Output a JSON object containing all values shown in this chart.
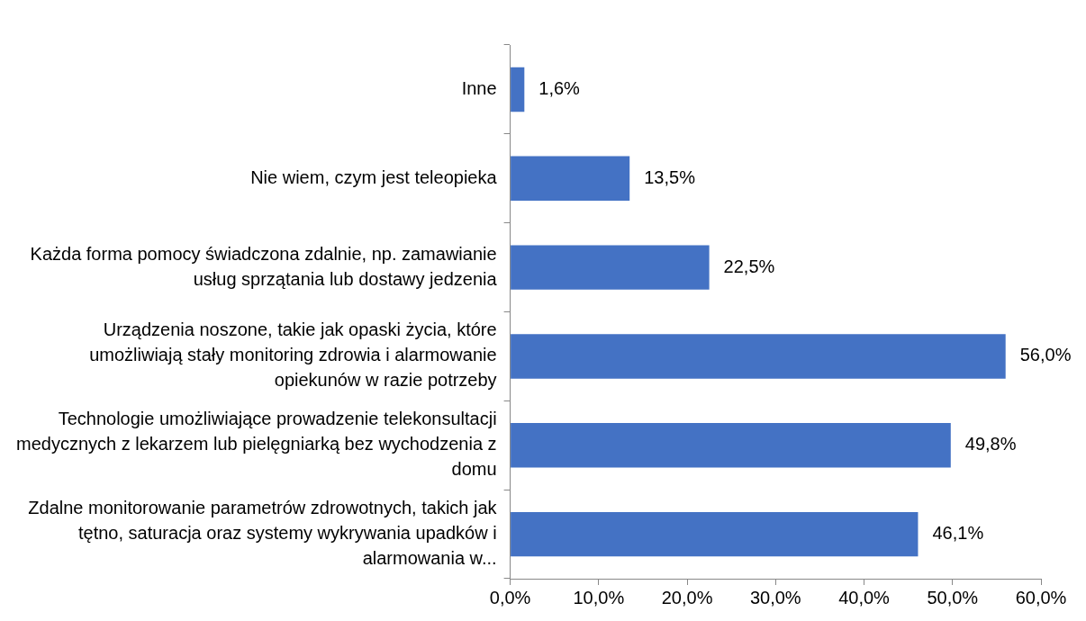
{
  "chart_data": {
    "type": "bar",
    "orientation": "horizontal",
    "categories": [
      "Inne",
      "Nie wiem, czym jest teleopieka",
      "Każda forma pomocy świadczona zdalnie, np. zamawianie usług sprzątania lub dostawy jedzenia",
      "Urządzenia noszone, takie jak opaski życia, które umożliwiają stały monitoring zdrowia i alarmowanie opiekunów w razie potrzeby",
      "Technologie umożliwiające prowadzenie telekonsultacji medycznych z lekarzem lub pielęgniarką bez wychodzenia z domu",
      "Zdalne monitorowanie parametrów zdrowotnych, takich jak tętno, saturacja oraz systemy wykrywania upadków i alarmowania w..."
    ],
    "values": [
      1.6,
      13.5,
      22.5,
      56.0,
      49.8,
      46.1
    ],
    "value_labels": [
      "1,6%",
      "13,5%",
      "22,5%",
      "56,0%",
      "49,8%",
      "46,1%"
    ],
    "color": "#4472c4",
    "xlim": [
      0,
      60
    ],
    "xticks": [
      {
        "value": 0,
        "label": "0,0%"
      },
      {
        "value": 10,
        "label": "10,0%"
      },
      {
        "value": 20,
        "label": "20,0%"
      },
      {
        "value": 30,
        "label": "30,0%"
      },
      {
        "value": 40,
        "label": "40,0%"
      },
      {
        "value": 50,
        "label": "50,0%"
      },
      {
        "value": 60,
        "label": "60,0%"
      }
    ]
  }
}
